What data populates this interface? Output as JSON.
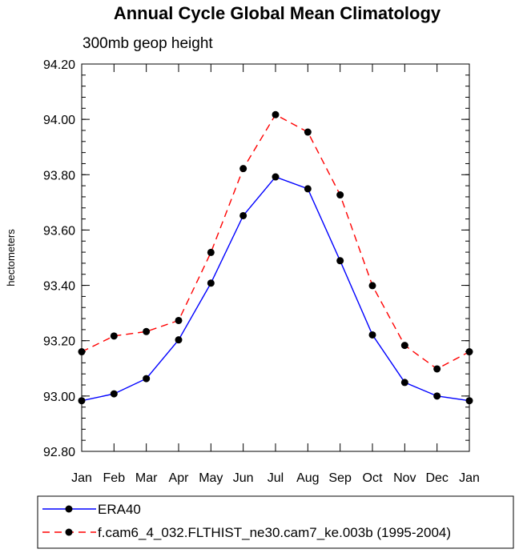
{
  "chart_data": {
    "type": "line",
    "title": "Annual Cycle Global Mean Climatology",
    "subtitle": "300mb geop height",
    "xlabel": "",
    "ylabel": "hectometers",
    "categories": [
      "Jan",
      "Feb",
      "Mar",
      "Apr",
      "May",
      "Jun",
      "Jul",
      "Aug",
      "Sep",
      "Oct",
      "Nov",
      "Dec",
      "Jan"
    ],
    "ylim": [
      92.8,
      94.2
    ],
    "yticks": [
      92.8,
      93.0,
      93.2,
      93.4,
      93.6,
      93.8,
      94.0,
      94.2
    ],
    "ytick_labels": [
      "92.80",
      "93.00",
      "93.20",
      "93.40",
      "93.60",
      "93.80",
      "94.00",
      "94.20"
    ],
    "grid": false,
    "legend_position": "bottom",
    "series": [
      {
        "name": "ERA40",
        "color": "#0000ff",
        "dash": "solid",
        "values": [
          92.983,
          93.008,
          93.063,
          93.203,
          93.408,
          93.652,
          93.792,
          93.749,
          93.489,
          93.221,
          93.049,
          93.0,
          92.983
        ]
      },
      {
        "name": "f.cam6_4_032.FLTHIST_ne30.cam7_ke.003b (1995-2004)",
        "color": "#ff0000",
        "dash": "dashed",
        "values": [
          93.16,
          93.217,
          93.233,
          93.273,
          93.519,
          93.822,
          94.017,
          93.954,
          93.727,
          93.399,
          93.183,
          93.098,
          93.16
        ]
      }
    ]
  }
}
